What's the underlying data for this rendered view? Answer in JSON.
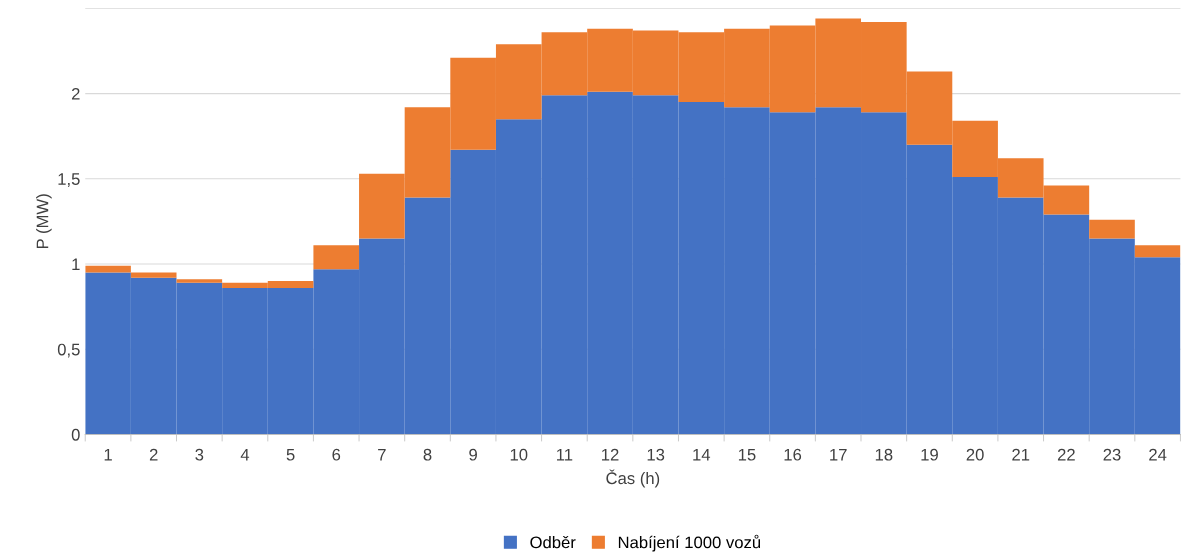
{
  "chart_data": {
    "type": "bar",
    "stacked": true,
    "xlabel": "Čas (h)",
    "ylabel": "P (MW)",
    "categories": [
      "1",
      "2",
      "3",
      "4",
      "5",
      "6",
      "7",
      "8",
      "9",
      "10",
      "11",
      "12",
      "13",
      "14",
      "15",
      "16",
      "17",
      "18",
      "19",
      "20",
      "21",
      "22",
      "23",
      "24"
    ],
    "series": [
      {
        "name": "Odběr",
        "color": "#4472c4",
        "values": [
          0.95,
          0.92,
          0.89,
          0.86,
          0.86,
          0.97,
          1.15,
          1.39,
          1.67,
          1.85,
          1.99,
          2.01,
          1.99,
          1.95,
          1.92,
          1.89,
          1.92,
          1.89,
          1.7,
          1.51,
          1.39,
          1.29,
          1.15,
          1.04
        ]
      },
      {
        "name": "Nabíjení 1000 vozů",
        "color": "#ed7d31",
        "values": [
          0.04,
          0.03,
          0.02,
          0.03,
          0.04,
          0.14,
          0.38,
          0.53,
          0.54,
          0.44,
          0.37,
          0.37,
          0.38,
          0.41,
          0.46,
          0.51,
          0.52,
          0.53,
          0.43,
          0.33,
          0.23,
          0.17,
          0.11,
          0.07
        ]
      }
    ],
    "ylim": [
      0,
      2.5
    ],
    "yticks": [
      0,
      {
        "value": 0.5,
        "label": "0,5"
      },
      1,
      {
        "value": 1.5,
        "label": "1,5"
      },
      2,
      {
        "value": 2.5,
        "label": null
      }
    ],
    "grid": "y",
    "legend": "bottom"
  }
}
